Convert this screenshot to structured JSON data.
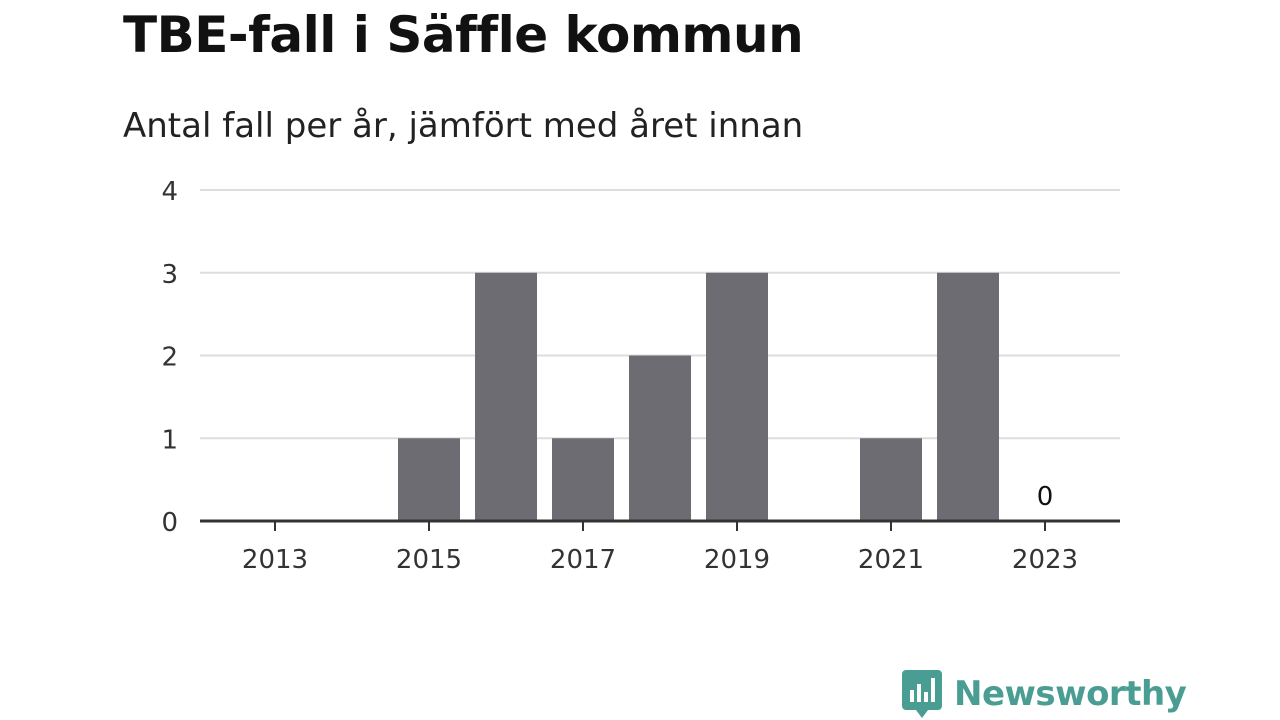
{
  "title": "TBE-fall i Säffle kommun",
  "subtitle": "Antal fall per år, jämfört med året innan",
  "brand": {
    "name": "Newsworthy",
    "icon": "newsworthy-logo-icon",
    "color": "#4a9d93"
  },
  "colors": {
    "bar": "#6d6c72",
    "grid": "#dddddd",
    "axis": "#333333",
    "text": "#333333"
  },
  "chart_data": {
    "type": "bar",
    "x": [
      2013,
      2014,
      2015,
      2016,
      2017,
      2018,
      2019,
      2020,
      2021,
      2022,
      2023
    ],
    "values": [
      0,
      0,
      1,
      3,
      1,
      2,
      3,
      0,
      1,
      3,
      0
    ],
    "xticks": [
      "2013",
      "2015",
      "2017",
      "2019",
      "2021",
      "2023"
    ],
    "yticks": [
      "0",
      "1",
      "2",
      "3",
      "4"
    ],
    "ylim": [
      0,
      4
    ],
    "data_labels": [
      {
        "x": 2023,
        "text": "0"
      }
    ],
    "grid": true,
    "xlabel": "",
    "ylabel": ""
  }
}
